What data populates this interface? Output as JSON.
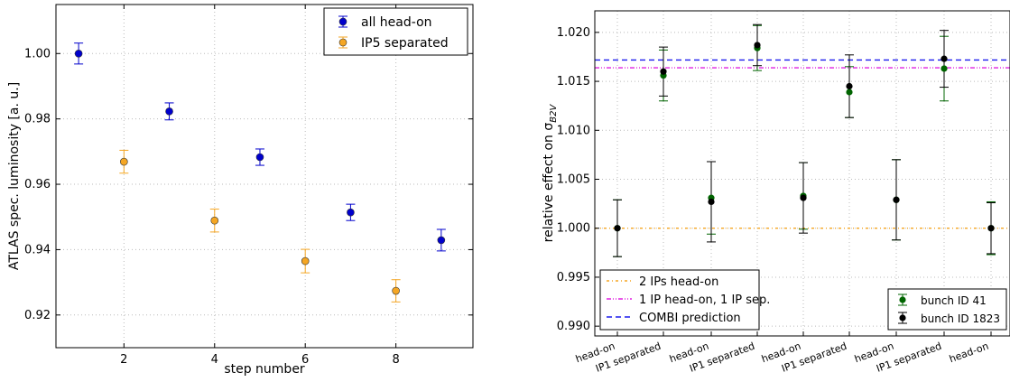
{
  "chart_data": [
    {
      "type": "scatter",
      "xlabel": "step number",
      "ylabel": "ATLAS spec. luminosity [a. u.]",
      "xlim": [
        0.5,
        9.7
      ],
      "ylim": [
        0.91,
        1.015
      ],
      "xticks": [
        "2",
        "4",
        "6",
        "8"
      ],
      "yticks": [
        "0.92",
        "0.94",
        "0.96",
        "0.98",
        "1.00"
      ],
      "grid": true,
      "legend_position": "top-right",
      "series": [
        {
          "name": "all head-on",
          "color": "#0000cc",
          "x": [
            1,
            3,
            5,
            7,
            9
          ],
          "y": [
            1.0,
            0.9823,
            0.9683,
            0.9514,
            0.9429
          ],
          "err": [
            0.0032,
            0.0026,
            0.0025,
            0.0025,
            0.0033
          ]
        },
        {
          "name": "IP5 separated",
          "color": "#f5a623",
          "x": [
            2,
            4,
            6,
            8
          ],
          "y": [
            0.9669,
            0.9489,
            0.9365,
            0.9274
          ],
          "err": [
            0.0035,
            0.0035,
            0.0036,
            0.0034
          ]
        }
      ]
    },
    {
      "type": "scatter",
      "xlabel": "",
      "ylabel": "relative effect on σ_B2V",
      "ylim": [
        0.989,
        1.0222
      ],
      "yticks": [
        "0.990",
        "0.995",
        "1.000",
        "1.005",
        "1.010",
        "1.015",
        "1.020"
      ],
      "categories": [
        "head-on",
        "IP1 separated",
        "head-on",
        "IP1 separated",
        "head-on",
        "IP1 separated",
        "head-on",
        "IP1 separated",
        "head-on"
      ],
      "grid": true,
      "legend_position": "bottom-right",
      "series": [
        {
          "name": "bunch ID 41",
          "color": "#006400",
          "y": [
            1.0,
            1.0156,
            1.0031,
            1.0184,
            1.0033,
            1.0139,
            1.0029,
            1.0163,
            1.0
          ],
          "err": [
            0.0029,
            0.0026,
            0.0037,
            0.0023,
            0.0034,
            0.0026,
            0.0041,
            0.0033,
            0.0027
          ]
        },
        {
          "name": "bunch ID 1823",
          "color": "#000000",
          "y": [
            1.0,
            1.016,
            1.0027,
            1.0187,
            1.0031,
            1.0145,
            1.0029,
            1.0173,
            1.0
          ],
          "err": [
            0.0029,
            0.0025,
            0.0041,
            0.0021,
            0.0036,
            0.0032,
            0.0041,
            0.0029,
            0.0026
          ]
        }
      ],
      "reference_lines": [
        {
          "name": "2 IPs head-on",
          "y": 1.0,
          "color": "#f5a623",
          "style": "dash-dot"
        },
        {
          "name": "1 IP head-on, 1 IP sep.",
          "y": 1.01638,
          "color": "#e020e0",
          "style": "dash-dot-dot"
        },
        {
          "name": "COMBI prediction",
          "y": 1.01718,
          "color": "#1a1aee",
          "style": "dashed"
        }
      ]
    }
  ]
}
